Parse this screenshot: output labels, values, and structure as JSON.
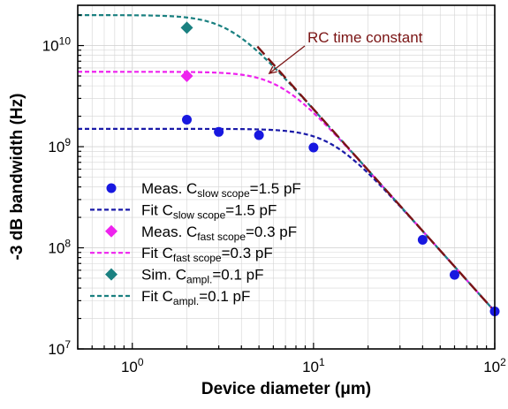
{
  "colors": {
    "measured_slow": "#1818e0",
    "fit_slow": "#1a1aa8",
    "measured_fast": "#ee22ee",
    "fit_fast": "#ee22ee",
    "simulated": "#1a8080",
    "fit_ampl": "#1a8080",
    "rc": "#7a1414",
    "grid": "#d4d4d4"
  },
  "chart_data": {
    "type": "scatter",
    "xlabel": "Device diameter (μm)",
    "ylabel": "-3 dB bandwidth (Hz)",
    "x_scale": "log",
    "y_scale": "log",
    "xlim": [
      0.5,
      100
    ],
    "ylim": [
      10000000.0,
      25000000000.0
    ],
    "x_ticks": [
      {
        "value": 1,
        "base": "10",
        "exp": "0"
      },
      {
        "value": 10,
        "base": "10",
        "exp": "1"
      },
      {
        "value": 100,
        "base": "10",
        "exp": "2"
      }
    ],
    "y_ticks": [
      {
        "value": 10000000.0,
        "base": "10",
        "exp": "7"
      },
      {
        "value": 100000000.0,
        "base": "10",
        "exp": "8"
      },
      {
        "value": 1000000000.0,
        "base": "10",
        "exp": "9"
      },
      {
        "value": 10000000000.0,
        "base": "10",
        "exp": "10"
      }
    ],
    "grid": true,
    "legend_position": "bottom-left",
    "series": [
      {
        "name_main": "Meas. C",
        "name_sub": "slow scope",
        "name_tail": "=1.5 pF",
        "kind": "scatter",
        "marker": "circle",
        "color": "#1818e0",
        "points": [
          [
            2,
            1850000000.0
          ],
          [
            3,
            1400000000.0
          ],
          [
            5,
            1300000000.0
          ],
          [
            10,
            980000000.0
          ],
          [
            40,
            120000000.0
          ],
          [
            60,
            54000000.0
          ],
          [
            100,
            23500000.0
          ]
        ]
      },
      {
        "name_main": "Fit C",
        "name_sub": "slow scope",
        "name_tail": "=1.5 pF",
        "kind": "fit",
        "color": "#1a1aa8",
        "f0": 1500000000.0,
        "k": 235000000000.0
      },
      {
        "name_main": "Meas. C",
        "name_sub": "fast scope",
        "name_tail": "=0.3 pF",
        "kind": "scatter",
        "marker": "diamond",
        "color": "#ee22ee",
        "points": [
          [
            2,
            5000000000.0
          ]
        ]
      },
      {
        "name_main": "Fit C",
        "name_sub": "fast scope",
        "name_tail": "=0.3 pF",
        "kind": "fit",
        "color": "#ee22ee",
        "f0": 5500000000.0,
        "k": 235000000000.0
      },
      {
        "name_main": "Sim. C",
        "name_sub": "ampl.",
        "name_tail": "=0.1 pF",
        "kind": "scatter",
        "marker": "diamond",
        "color": "#1a8080",
        "points": [
          [
            2,
            15000000000.0
          ]
        ]
      },
      {
        "name_main": "Fit C",
        "name_sub": "ampl.",
        "name_tail": "=0.1 pF",
        "kind": "fit",
        "color": "#1a8080",
        "f0": 20000000000.0,
        "k": 235000000000.0
      }
    ],
    "rc_line": {
      "k": 235000000000.0,
      "x_start": 4.9,
      "x_end": 100
    },
    "annotation": {
      "text": "RC time constant",
      "arrow_to": [
        5.7,
        5300000000.0
      ]
    }
  }
}
